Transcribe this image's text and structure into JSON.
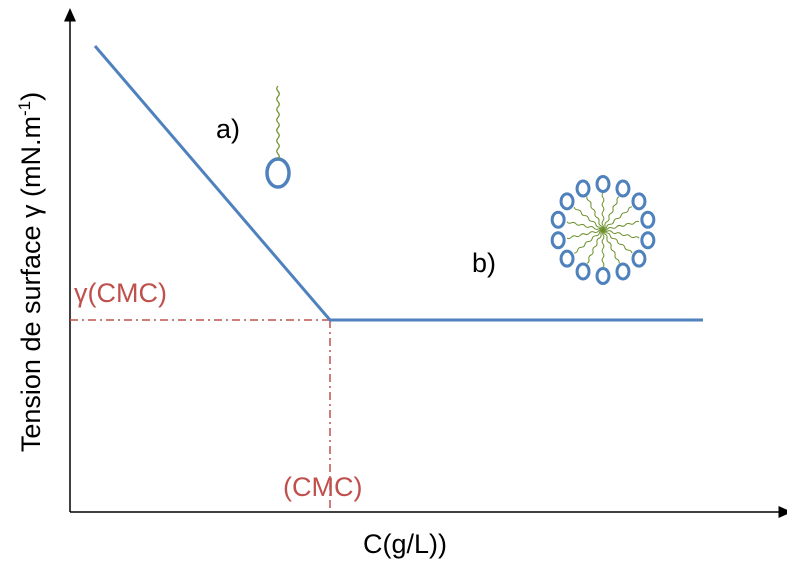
{
  "axes": {
    "y_label": {
      "text": "Tension de surface γ (mN.m",
      "superscript": "-1",
      "suffix": ")"
    },
    "x_label": "C(g/L))"
  },
  "annotations": {
    "monomer": "a)",
    "micelle": "b)",
    "gamma_cmc": "γ(CMC)",
    "cmc": "(CMC)"
  }
}
